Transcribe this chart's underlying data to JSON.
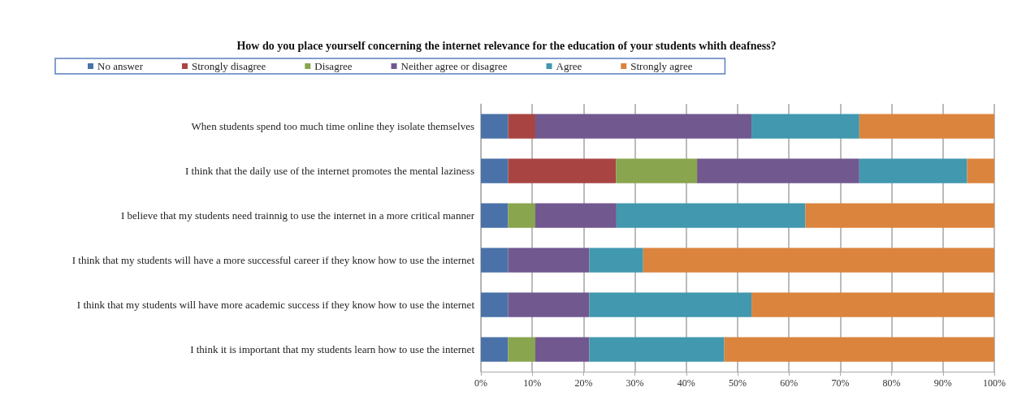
{
  "chart_data": {
    "type": "bar",
    "orientation": "horizontal",
    "stacked": true,
    "title": "How do you place yourself concerning the internet relevance for the education of your students whith deafness?",
    "categories": [
      "When students spend too much time online they isolate themselves",
      "I think that the daily use of the internet promotes the mental laziness",
      "I believe that my students need trainnig to use the internet in a more critical manner",
      "I think that my students will have a more successful career if they know how to use the internet",
      "I think that my students will have more academic success if they know how to use the internet",
      "I think it is important that my students learn how to use the internet"
    ],
    "series": [
      {
        "name": "No answer",
        "color": "#4a72a8",
        "values": [
          5.3,
          5.3,
          5.3,
          5.3,
          5.3,
          5.3
        ]
      },
      {
        "name": "Strongly disagree",
        "color": "#a84543",
        "values": [
          5.3,
          21.0,
          0,
          0,
          0,
          0
        ]
      },
      {
        "name": "Disagree",
        "color": "#89a54e",
        "values": [
          0,
          15.8,
          5.3,
          0,
          0,
          5.3
        ]
      },
      {
        "name": "Neither agree or disagree",
        "color": "#71588f",
        "values": [
          42.1,
          31.6,
          15.8,
          15.8,
          15.8,
          10.5
        ]
      },
      {
        "name": "Agree",
        "color": "#4198af",
        "values": [
          21.0,
          21.0,
          36.8,
          10.5,
          31.6,
          26.3
        ]
      },
      {
        "name": "Strongly agree",
        "color": "#db843d",
        "values": [
          26.3,
          5.3,
          36.8,
          68.4,
          47.3,
          52.6
        ]
      }
    ],
    "xlim": [
      0,
      100
    ],
    "xticks": [
      {
        "value": 0,
        "label": "0%"
      },
      {
        "value": 10,
        "label": "10%"
      },
      {
        "value": 20,
        "label": "20%"
      },
      {
        "value": 30,
        "label": "30%"
      },
      {
        "value": 40,
        "label": "40%"
      },
      {
        "value": 50,
        "label": "50%"
      },
      {
        "value": 60,
        "label": "60%"
      },
      {
        "value": 70,
        "label": "70%"
      },
      {
        "value": 80,
        "label": "80%"
      },
      {
        "value": 90,
        "label": "90%"
      },
      {
        "value": 100,
        "label": "100%"
      }
    ],
    "grid": "x",
    "legend": "top"
  }
}
